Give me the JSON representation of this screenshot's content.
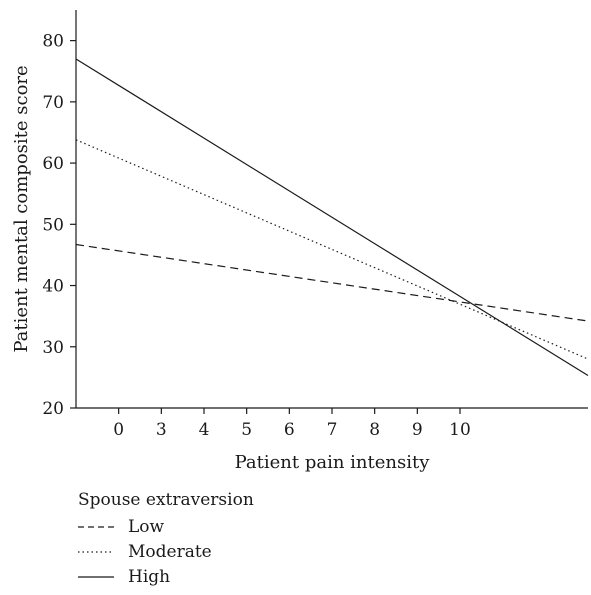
{
  "chart_data": {
    "type": "line",
    "title": "",
    "xlabel": "Patient pain intensity",
    "ylabel": "Patient mental composite score",
    "categories": [
      "0",
      "3",
      "4",
      "5",
      "6",
      "7",
      "8",
      "9",
      "10"
    ],
    "x_range": [
      -1,
      11
    ],
    "ylim": [
      20,
      85
    ],
    "yticks": [
      20,
      30,
      40,
      50,
      60,
      70,
      80
    ],
    "grid": false,
    "legend": {
      "title": "Spouse extraversion",
      "position": "bottom-left"
    },
    "series": [
      {
        "name": "Low",
        "style": "dashed",
        "x": [
          -1,
          11
        ],
        "y": [
          46.7,
          34.2
        ]
      },
      {
        "name": "Moderate",
        "style": "dotted",
        "x": [
          -1,
          11
        ],
        "y": [
          63.8,
          28.0
        ]
      },
      {
        "name": "High",
        "style": "solid",
        "x": [
          -1,
          11
        ],
        "y": [
          77.0,
          25.3
        ]
      }
    ]
  }
}
